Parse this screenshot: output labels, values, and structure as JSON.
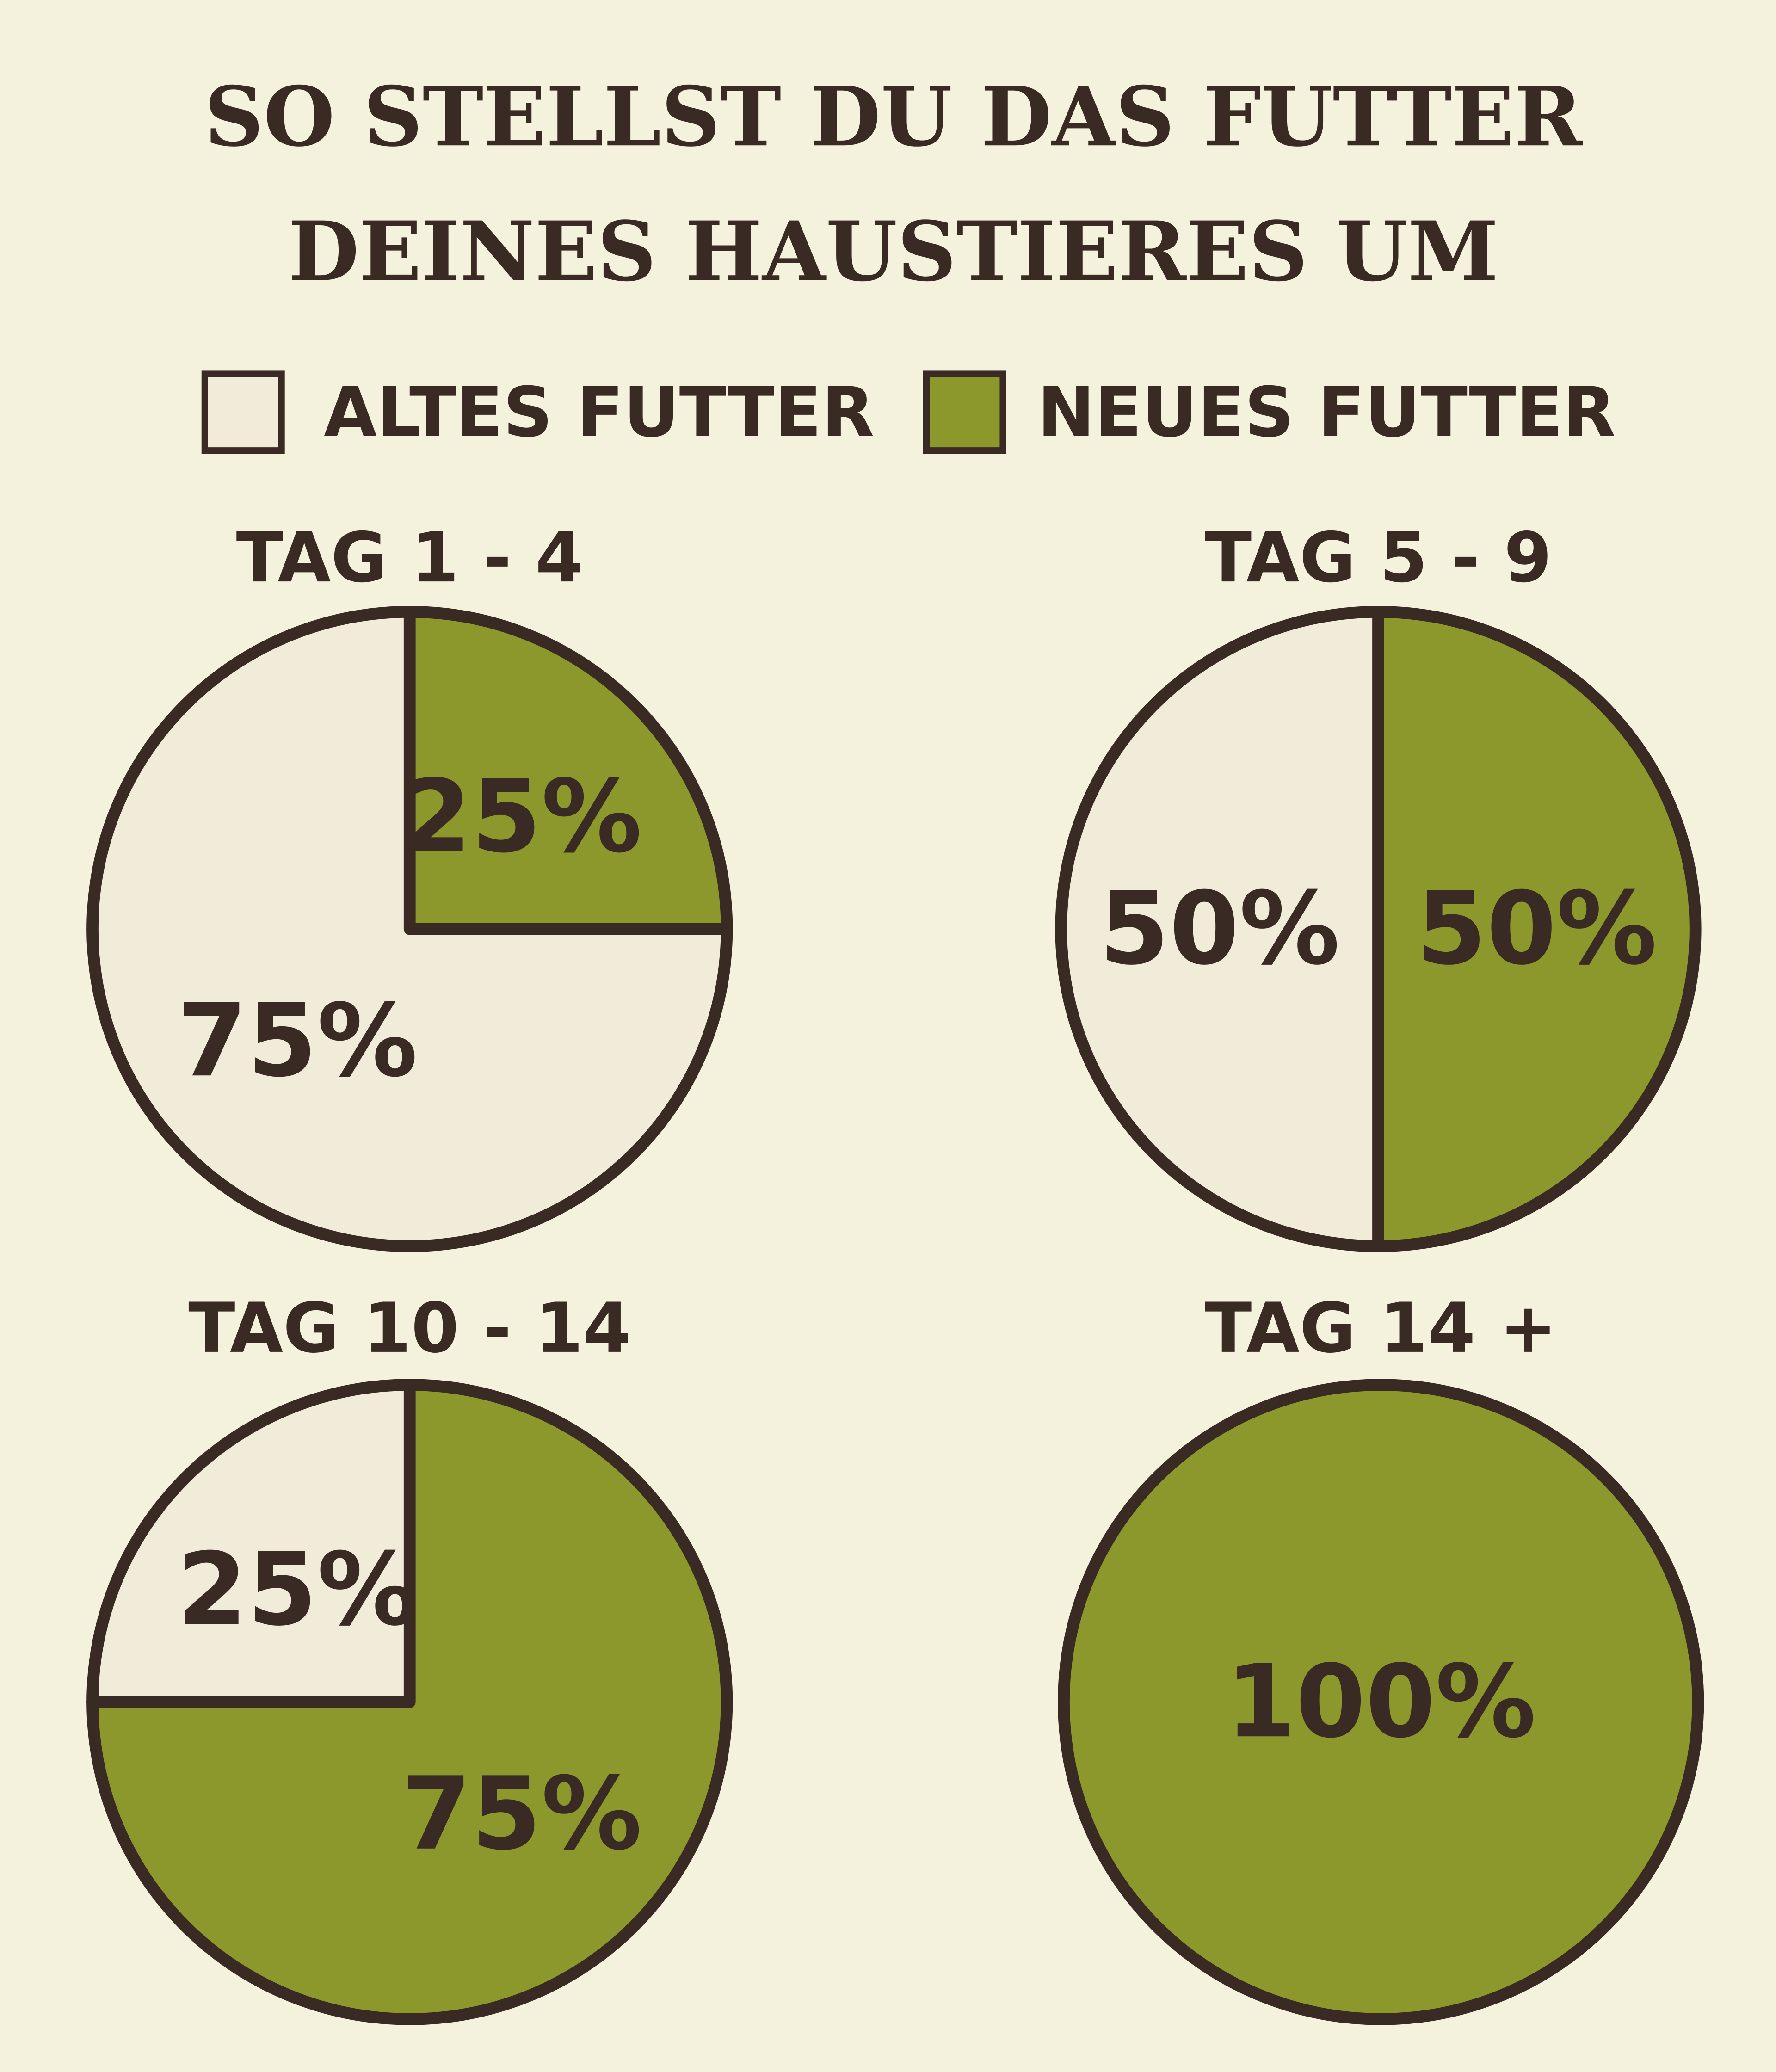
{
  "title": [
    "SO STELLST DU DAS FUTTER",
    "DEINES HAUSTIERES UM"
  ],
  "chart_data": [
    {
      "type": "pie",
      "title": "TAG 1 - 4",
      "categories": [
        "ALTES FUTTER",
        "NEUES FUTTER"
      ],
      "values": [
        75,
        25
      ],
      "value_labels": [
        "75%",
        "25%"
      ],
      "colors": [
        "#f1ebda",
        "#8c982b"
      ]
    },
    {
      "type": "pie",
      "title": "TAG 5 - 9",
      "categories": [
        "ALTES FUTTER",
        "NEUES FUTTER"
      ],
      "values": [
        50,
        50
      ],
      "value_labels": [
        "50%",
        "50%"
      ],
      "colors": [
        "#f1ebda",
        "#8c982b"
      ]
    },
    {
      "type": "pie",
      "title": "TAG 10 - 14",
      "categories": [
        "ALTES FUTTER",
        "NEUES FUTTER"
      ],
      "values": [
        25,
        75
      ],
      "value_labels": [
        "25%",
        "75%"
      ],
      "colors": [
        "#f1ebda",
        "#8c982b"
      ]
    },
    {
      "type": "pie",
      "title": "TAG 14 +",
      "categories": [
        "ALTES FUTTER",
        "NEUES FUTTER"
      ],
      "values": [
        0,
        100
      ],
      "value_labels": [
        null,
        "100%"
      ],
      "colors": [
        "#f1ebda",
        "#8c982b"
      ]
    }
  ]
}
